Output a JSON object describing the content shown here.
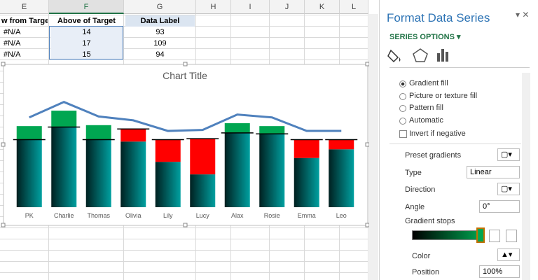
{
  "spreadsheet": {
    "columns": [
      "E",
      "F",
      "G",
      "H",
      "I",
      "J",
      "K",
      "L"
    ],
    "headers": [
      "w from Target",
      "Above of Target",
      "Data Label"
    ],
    "rows": [
      [
        "#N/A",
        14,
        93
      ],
      [
        "#N/A",
        17,
        109
      ],
      [
        "#N/A",
        15,
        94
      ]
    ]
  },
  "chart_data": {
    "type": "bar",
    "title": "Chart Title",
    "categories": [
      "PK",
      "Charlie",
      "Thomas",
      "Olivia",
      "Lily",
      "Lucy",
      "Alax",
      "Rosie",
      "Emma",
      "Leo"
    ],
    "stacked": true,
    "series": [
      {
        "color": "#008080",
        "values": [
          70,
          83,
          70,
          68,
          47,
          34,
          77,
          76,
          51,
          60
        ]
      },
      {
        "color": "#00a651",
        "values": [
          14,
          17,
          15,
          null,
          null,
          null,
          10,
          8,
          null,
          null
        ]
      },
      {
        "color": "#ff0000",
        "values": [
          null,
          null,
          null,
          13,
          23,
          37,
          null,
          null,
          19,
          10
        ]
      }
    ],
    "target": {
      "color": "#000000",
      "values": [
        70,
        83,
        70,
        81,
        70,
        71,
        77,
        76,
        70,
        70
      ]
    },
    "line": {
      "color": "#4f81bd",
      "values": [
        93,
        109,
        94,
        90,
        79,
        80,
        96,
        93,
        79,
        79
      ]
    },
    "ylim": [
      0,
      124
    ]
  },
  "panel": {
    "title": "Format Data Series",
    "section": "SERIES OPTIONS",
    "fill_options": [
      "Gradient fill",
      "Picture or texture fill",
      "Pattern fill",
      "Automatic"
    ],
    "invert": "Invert if negative",
    "preset": "Preset gradients",
    "type_label": "Type",
    "type_value": "Linear",
    "direction": "Direction",
    "angle_label": "Angle",
    "angle_value": "0°",
    "stops": "Gradient stops",
    "color": "Color",
    "position_label": "Position",
    "position_value": "100%"
  }
}
